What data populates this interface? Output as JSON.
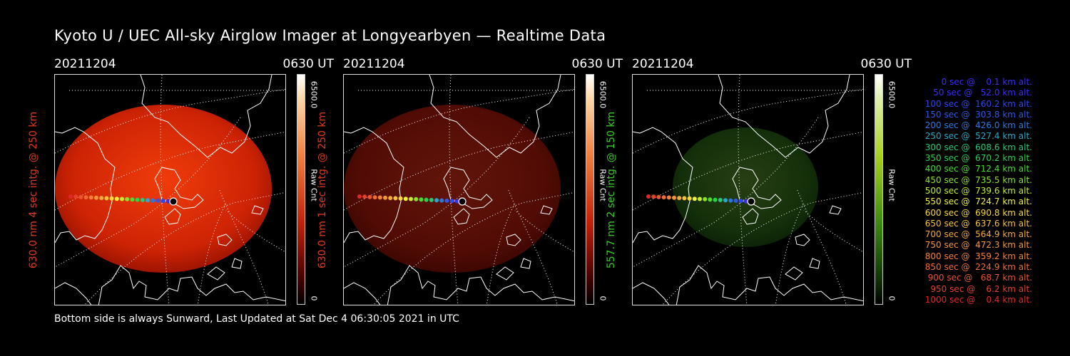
{
  "title": "Kyoto U / UEC All-sky Airglow Imager at Longyearbyen — Realtime Data",
  "footer": "Bottom side is always Sunward, Last Updated at Sat Dec  4 06:30:05 2021 in UTC",
  "panels": [
    {
      "date": "20211204",
      "time": "0630 UT",
      "ylabel": "630.0 nm 4 sec intg. @ 250 km",
      "label_color": "#e03a1e",
      "cbar_max": "6500.0",
      "cbar_min": "0",
      "cbar_unit": "Raw Cnt",
      "colorscale": "red",
      "brightness": 1.0
    },
    {
      "date": "20211204",
      "time": "0630 UT",
      "ylabel": "630.0 nm 1 sec intg. @ 250 km",
      "label_color": "#e03a1e",
      "cbar_max": "6500.0",
      "cbar_min": "0",
      "cbar_unit": "Raw Cnt",
      "colorscale": "red",
      "brightness": 0.35
    },
    {
      "date": "20211204",
      "time": "0630 UT",
      "ylabel": "557.7 nm 2 sec intg. @ 150 km",
      "label_color": "#3ccc2a",
      "cbar_max": "6500.0",
      "cbar_min": "0",
      "cbar_unit": "Raw Cnt",
      "colorscale": "green",
      "brightness": 0.3
    }
  ],
  "legend": [
    {
      "text": "   0 sec @    0.1 km alt.",
      "color": "#3a2cff"
    },
    {
      "text": "  50 sec @   52.0 km alt.",
      "color": "#3a2cff"
    },
    {
      "text": " 100 sec @  160.2 km alt.",
      "color": "#2f46f0"
    },
    {
      "text": " 150 sec @  303.8 km alt.",
      "color": "#2f58e8"
    },
    {
      "text": " 200 sec @  426.0 km alt.",
      "color": "#2d78dc"
    },
    {
      "text": " 250 sec @  527.4 km alt.",
      "color": "#2ba8c8"
    },
    {
      "text": " 300 sec @  608.6 km alt.",
      "color": "#28c87a"
    },
    {
      "text": " 350 sec @  670.2 km alt.",
      "color": "#2ed050"
    },
    {
      "text": " 400 sec @  712.4 km alt.",
      "color": "#4cdc30"
    },
    {
      "text": " 450 sec @  735.5 km alt.",
      "color": "#8ee030"
    },
    {
      "text": " 500 sec @  739.6 km alt.",
      "color": "#c6ea34"
    },
    {
      "text": " 550 sec @  724.7 km alt.",
      "color": "#f0f040"
    },
    {
      "text": " 600 sec @  690.8 km alt.",
      "color": "#f8d840"
    },
    {
      "text": " 650 sec @  637.6 km alt.",
      "color": "#f6c040"
    },
    {
      "text": " 700 sec @  564.9 km alt.",
      "color": "#f4a83c"
    },
    {
      "text": " 750 sec @  472.3 km alt.",
      "color": "#f2963a"
    },
    {
      "text": " 800 sec @  359.2 km alt.",
      "color": "#f08238"
    },
    {
      "text": " 850 sec @  224.9 km alt.",
      "color": "#ec6c34"
    },
    {
      "text": " 900 sec @   68.7 km alt.",
      "color": "#e85632"
    },
    {
      "text": " 950 sec @    6.2 km alt.",
      "color": "#e4402e"
    },
    {
      "text": "1000 sec @    0.4 km alt.",
      "color": "#e02a2a"
    }
  ]
}
